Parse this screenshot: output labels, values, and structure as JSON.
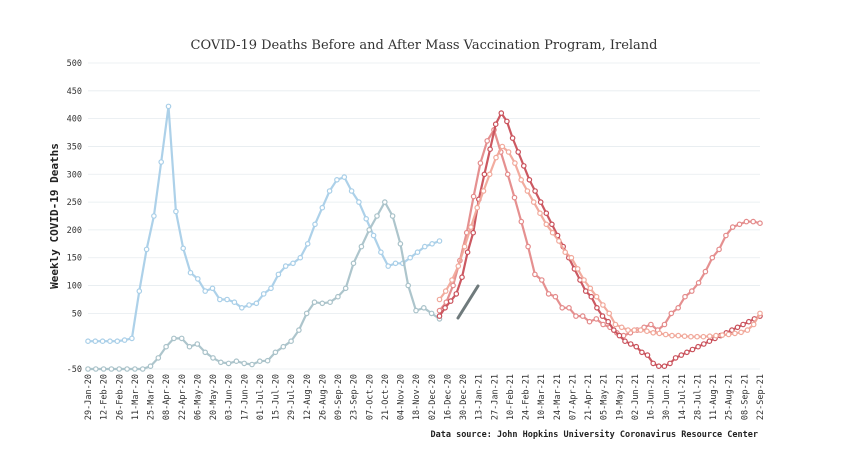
{
  "chart_data": {
    "type": "line",
    "title": "COVID-19 Deaths Before and After Mass Vaccination Program, Ireland",
    "ylabel": "Weekly COVID-19 Deaths",
    "source": "Data source: John Hopkins University Coronavirus Resource Center",
    "ylim": [
      -50,
      500
    ],
    "yticks": [
      -50,
      50,
      100,
      150,
      200,
      250,
      300,
      350,
      400,
      450,
      500
    ],
    "ytick_labels": [
      "-50",
      "50",
      "100",
      "150",
      "200",
      "250",
      "300",
      "350",
      "400",
      "450",
      "500"
    ],
    "grid": true,
    "x_labels": [
      "29-Jan-20",
      "12-Feb-20",
      "26-Feb-20",
      "11-Mar-20",
      "25-Mar-20",
      "08-Apr-20",
      "22-Apr-20",
      "06-May-20",
      "20-May-20",
      "03-Jun-20",
      "17-Jun-20",
      "01-Jul-20",
      "15-Jul-20",
      "29-Jul-20",
      "12-Aug-20",
      "26-Aug-20",
      "09-Sep-20",
      "23-Sep-20",
      "07-Oct-20",
      "21-Oct-20",
      "04-Nov-20",
      "18-Nov-20",
      "02-Dec-20",
      "16-Dec-20",
      "30-Dec-20",
      "13-Jan-21",
      "27-Jan-21",
      "10-Feb-21",
      "24-Feb-21",
      "10-Mar-21",
      "24-Mar-21",
      "07-Apr-21",
      "21-Apr-21",
      "05-May-21",
      "19-May-21",
      "02-Jun-21",
      "16-Jun-21",
      "30-Jun-21",
      "14-Jul-21",
      "28-Jul-21",
      "11-Aug-21",
      "25-Aug-21",
      "08-Sep-21",
      "22-Sep-21"
    ],
    "series": [
      {
        "color": "#a9cfe8",
        "values": [
          0,
          0,
          0,
          0,
          0,
          2,
          5,
          90,
          165,
          225,
          322,
          422,
          233,
          167,
          123,
          112,
          90,
          95,
          75,
          75,
          70,
          60,
          65,
          68,
          85,
          95,
          120,
          135,
          140,
          150,
          175,
          210,
          240,
          270,
          290,
          295,
          270,
          250,
          220,
          190,
          160,
          135,
          140,
          140,
          150,
          160,
          170,
          175,
          180
        ]
      },
      {
        "color": "#a9c2c9",
        "values": [
          -50,
          -50,
          -50,
          -50,
          -50,
          -50,
          -50,
          -50,
          -45,
          -30,
          -10,
          5,
          5,
          -10,
          -5,
          -20,
          -30,
          -38,
          -40,
          -36,
          -40,
          -42,
          -36,
          -35,
          -20,
          -10,
          0,
          20,
          50,
          70,
          68,
          70,
          80,
          95,
          140,
          170,
          200,
          225,
          250,
          225,
          175,
          100,
          55,
          60,
          50,
          40
        ]
      },
      {
        "color": "#e48a8a",
        "values": [
          55,
          70,
          100,
          145,
          195,
          260,
          320,
          360,
          380,
          340,
          300,
          258,
          215,
          170,
          120,
          110,
          85,
          80,
          60,
          60,
          45,
          45,
          35,
          40,
          30,
          25,
          15,
          10,
          15,
          20,
          25,
          30,
          20,
          30,
          50,
          60,
          80,
          90,
          105,
          125,
          150,
          165,
          190,
          205,
          210,
          215,
          215,
          212
        ]
      },
      {
        "color": "#c9505a",
        "values": [
          45,
          60,
          72,
          85,
          115,
          160,
          195,
          255,
          300,
          345,
          390,
          410,
          395,
          365,
          340,
          315,
          290,
          270,
          250,
          230,
          210,
          190,
          170,
          150,
          130,
          110,
          90,
          80,
          60,
          45,
          35,
          20,
          10,
          0,
          -5,
          -10,
          -20,
          -25,
          -40,
          -45,
          -45,
          -40,
          -30,
          -25,
          -20,
          -15,
          -10,
          -5,
          0,
          5,
          10,
          15,
          20,
          25,
          30,
          35,
          40,
          45
        ]
      },
      {
        "color": "#f1a89a",
        "values": [
          75,
          90,
          110,
          135,
          170,
          205,
          240,
          270,
          300,
          330,
          350,
          340,
          320,
          290,
          270,
          250,
          230,
          210,
          195,
          180,
          160,
          150,
          130,
          110,
          95,
          80,
          65,
          50,
          30,
          25,
          20,
          20,
          20,
          18,
          15,
          14,
          12,
          10,
          10,
          9,
          8,
          8,
          8,
          9,
          10,
          11,
          12,
          14,
          16,
          20,
          30,
          50
        ]
      }
    ]
  }
}
